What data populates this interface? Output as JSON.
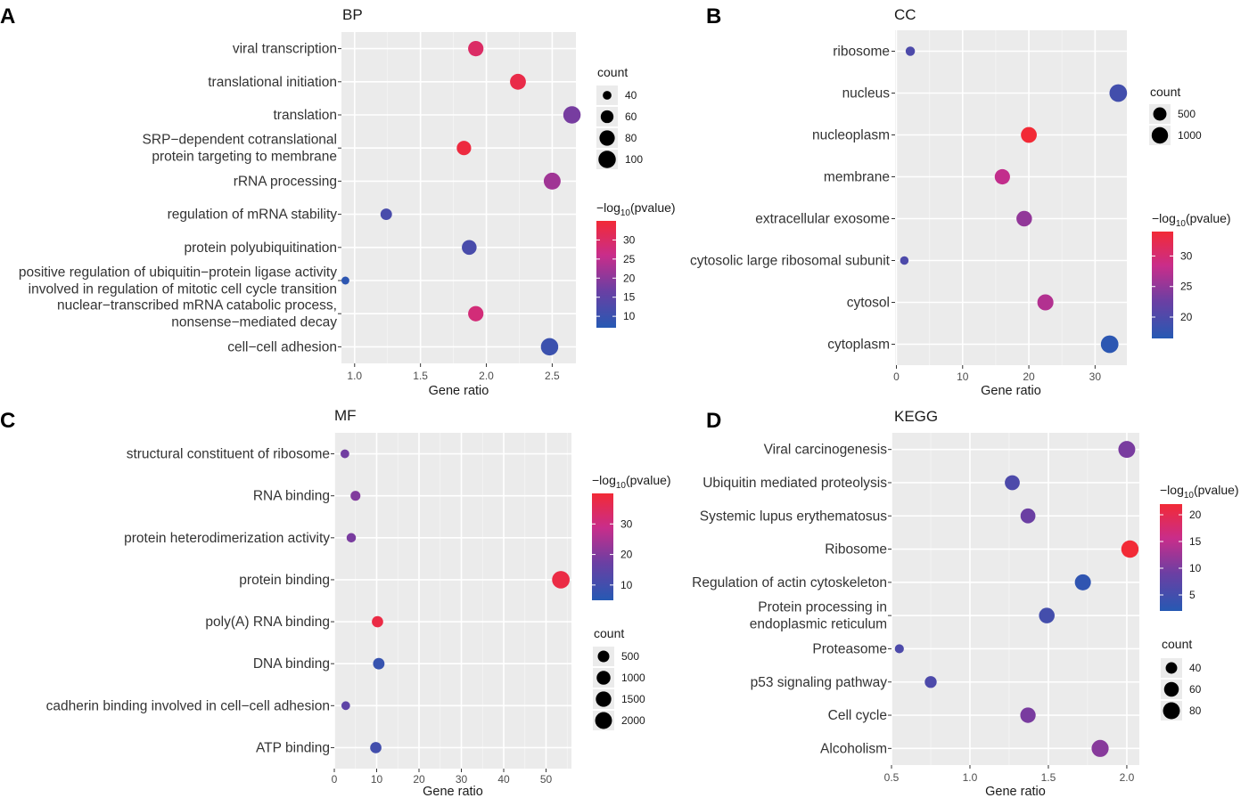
{
  "chart_data": [
    {
      "panel": "A",
      "type": "scatter",
      "title": "BP",
      "xlabel": "Gene ratio",
      "xlim": [
        0.9,
        2.68
      ],
      "xticks": [
        1.0,
        1.5,
        2.0,
        2.5
      ],
      "xtick_labels": [
        "1.0",
        "1.5",
        "2.0",
        "2.5"
      ],
      "terms": [
        {
          "label": "viral transcription",
          "x": 1.92,
          "count": 80,
          "neglog10p": 30
        },
        {
          "label": "translational initiation",
          "x": 2.24,
          "count": 85,
          "neglog10p": 33
        },
        {
          "label": "translation",
          "x": 2.65,
          "count": 100,
          "neglog10p": 18
        },
        {
          "label": "SRP−dependent cotranslational\nprotein targeting to membrane",
          "x": 1.83,
          "count": 72,
          "neglog10p": 34
        },
        {
          "label": "rRNA processing",
          "x": 2.5,
          "count": 95,
          "neglog10p": 22
        },
        {
          "label": "regulation of mRNA stability",
          "x": 1.24,
          "count": 52,
          "neglog10p": 12
        },
        {
          "label": "protein polyubiquitination",
          "x": 1.87,
          "count": 75,
          "neglog10p": 12
        },
        {
          "label": "positive regulation of ubiquitin−protein ligase activity\ninvolved in regulation of mitotic cell cycle transition",
          "x": 0.93,
          "count": 38,
          "neglog10p": 8
        },
        {
          "label": "nuclear−transcribed mRNA catabolic process,\nnonsense−mediated decay",
          "x": 1.92,
          "count": 80,
          "neglog10p": 28
        },
        {
          "label": "cell−cell adhesion",
          "x": 2.48,
          "count": 100,
          "neglog10p": 10
        }
      ],
      "size_legend": {
        "title": "count",
        "values": [
          40,
          60,
          80,
          100
        ],
        "labels": [
          "40",
          "60",
          "80",
          "100"
        ],
        "range": [
          35,
          105
        ]
      },
      "color_legend": {
        "title_prefix": "−log",
        "title_sub": "10",
        "title_suffix": "(pvalue)",
        "min": 7,
        "max": 35,
        "ticks": [
          10,
          15,
          20,
          25,
          30
        ],
        "tick_labels": [
          "10",
          "15",
          "20",
          "25",
          "30"
        ]
      }
    },
    {
      "panel": "B",
      "type": "scatter",
      "title": "CC",
      "xlabel": "Gene ratio",
      "xlim": [
        -0.2,
        34.8
      ],
      "xticks": [
        0,
        10,
        20,
        30
      ],
      "xtick_labels": [
        "0",
        "10",
        "20",
        "30"
      ],
      "terms": [
        {
          "label": "ribosome",
          "x": 2.1,
          "count": 150,
          "neglog10p": 20
        },
        {
          "label": "nucleus",
          "x": 33.5,
          "count": 1250,
          "neglog10p": 19
        },
        {
          "label": "nucleoplasm",
          "x": 20.0,
          "count": 900,
          "neglog10p": 34
        },
        {
          "label": "membrane",
          "x": 16.0,
          "count": 800,
          "neglog10p": 28
        },
        {
          "label": "extracellular exosome",
          "x": 19.3,
          "count": 850,
          "neglog10p": 25
        },
        {
          "label": "cytosolic large ribosomal subunit",
          "x": 1.2,
          "count": 120,
          "neglog10p": 20
        },
        {
          "label": "cytosol",
          "x": 22.5,
          "count": 950,
          "neglog10p": 27
        },
        {
          "label": "cytoplasm",
          "x": 32.2,
          "count": 1250,
          "neglog10p": 17
        }
      ],
      "size_legend": {
        "title": "count",
        "values": [
          500,
          1000
        ],
        "labels": [
          "500",
          "1000"
        ],
        "range": [
          100,
          1300
        ]
      },
      "color_legend": {
        "title_prefix": "−log",
        "title_sub": "10",
        "title_suffix": "(pvalue)",
        "min": 16.5,
        "max": 34,
        "ticks": [
          20,
          25,
          30
        ],
        "tick_labels": [
          "20",
          "25",
          "30"
        ]
      }
    },
    {
      "panel": "C",
      "type": "scatter",
      "title": "MF",
      "xlabel": "Gene ratio",
      "xlim": [
        0,
        56
      ],
      "xticks": [
        0,
        10,
        20,
        30,
        40,
        50
      ],
      "xtick_labels": [
        "0",
        "10",
        "20",
        "30",
        "40",
        "50"
      ],
      "terms": [
        {
          "label": "structural constituent of ribosome",
          "x": 2.5,
          "count": 150,
          "neglog10p": 18
        },
        {
          "label": "RNA binding",
          "x": 5.0,
          "count": 250,
          "neglog10p": 20
        },
        {
          "label": "protein heterodimerization activity",
          "x": 4.0,
          "count": 200,
          "neglog10p": 19
        },
        {
          "label": "protein binding",
          "x": 53.5,
          "count": 2300,
          "neglog10p": 38
        },
        {
          "label": "poly(A) RNA binding",
          "x": 10.2,
          "count": 450,
          "neglog10p": 38
        },
        {
          "label": "DNA binding",
          "x": 10.5,
          "count": 480,
          "neglog10p": 8
        },
        {
          "label": "cadherin binding involved in cell−cell adhesion",
          "x": 2.7,
          "count": 150,
          "neglog10p": 15
        },
        {
          "label": "ATP binding",
          "x": 9.8,
          "count": 450,
          "neglog10p": 10
        }
      ],
      "size_legend": {
        "title": "count",
        "values": [
          500,
          1000,
          1500,
          2000
        ],
        "labels": [
          "500",
          "1000",
          "1500",
          "2000"
        ],
        "range": [
          100,
          2400
        ]
      },
      "color_legend": {
        "title_prefix": "−log",
        "title_sub": "10",
        "title_suffix": "(pvalue)",
        "min": 5,
        "max": 40,
        "ticks": [
          10,
          20,
          30
        ],
        "tick_labels": [
          "10",
          "20",
          "30"
        ]
      }
    },
    {
      "panel": "D",
      "type": "scatter",
      "title": "KEGG",
      "xlabel": "Gene ratio",
      "xlim": [
        0.5,
        2.08
      ],
      "xticks": [
        0.5,
        1.0,
        1.5,
        2.0
      ],
      "xtick_labels": [
        "0.5",
        "1.0",
        "1.5",
        "2.0"
      ],
      "terms": [
        {
          "label": "Viral carcinogenesis",
          "x": 2.0,
          "count": 80,
          "neglog10p": 10
        },
        {
          "label": "Ubiquitin mediated proteolysis",
          "x": 1.27,
          "count": 62,
          "neglog10p": 6
        },
        {
          "label": "Systemic lupus erythematosus",
          "x": 1.37,
          "count": 62,
          "neglog10p": 9
        },
        {
          "label": "Ribosome",
          "x": 2.02,
          "count": 85,
          "neglog10p": 22
        },
        {
          "label": "Regulation of actin cytoskeleton",
          "x": 1.72,
          "count": 72,
          "neglog10p": 3
        },
        {
          "label": "Protein processing in\nendoplasmic reticulum",
          "x": 1.49,
          "count": 68,
          "neglog10p": 5
        },
        {
          "label": "Proteasome",
          "x": 0.55,
          "count": 32,
          "neglog10p": 6
        },
        {
          "label": "p53 signaling pathway",
          "x": 0.75,
          "count": 42,
          "neglog10p": 6
        },
        {
          "label": "Cell cycle",
          "x": 1.37,
          "count": 66,
          "neglog10p": 10
        },
        {
          "label": "Alcoholism",
          "x": 1.83,
          "count": 82,
          "neglog10p": 11
        }
      ],
      "size_legend": {
        "title": "count",
        "values": [
          40,
          60,
          80
        ],
        "labels": [
          "40",
          "60",
          "80"
        ],
        "range": [
          30,
          90
        ]
      },
      "color_legend": {
        "title_prefix": "−log",
        "title_sub": "10",
        "title_suffix": "(pvalue)",
        "min": 2,
        "max": 22,
        "ticks": [
          5,
          10,
          15,
          20
        ],
        "tick_labels": [
          "5",
          "10",
          "15",
          "20"
        ]
      }
    }
  ]
}
